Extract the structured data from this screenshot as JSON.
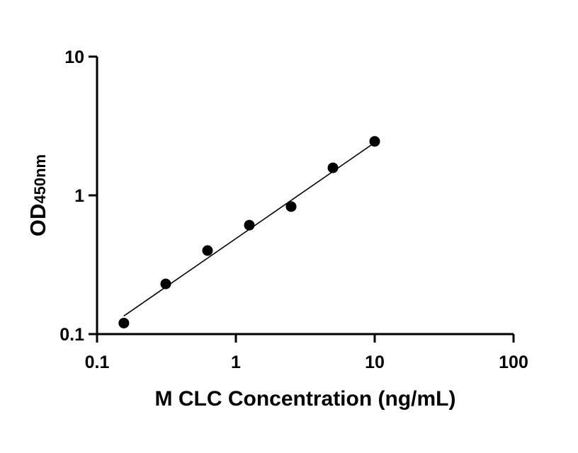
{
  "chart_data": {
    "type": "scatter",
    "title": "",
    "xlabel": "M CLC Concentration (ng/mL)",
    "ylabel": {
      "main": "OD",
      "subscript": "450nm"
    },
    "x_scale": "log",
    "y_scale": "log",
    "xlim": [
      0.1,
      100
    ],
    "ylim": [
      0.1,
      10
    ],
    "x_ticks": [
      {
        "value": 0.1,
        "label": "0.1"
      },
      {
        "value": 1,
        "label": "1"
      },
      {
        "value": 10,
        "label": "10"
      },
      {
        "value": 100,
        "label": "100"
      }
    ],
    "y_ticks": [
      {
        "value": 0.1,
        "label": "0.1"
      },
      {
        "value": 1,
        "label": "1"
      },
      {
        "value": 10,
        "label": "10"
      }
    ],
    "grid": false,
    "legend": false,
    "series": [
      {
        "x": [
          0.156,
          0.3125,
          0.625,
          1.25,
          2.5,
          5,
          10
        ],
        "y": [
          0.12,
          0.23,
          0.4,
          0.61,
          0.83,
          1.58,
          2.45
        ]
      }
    ],
    "fit_line": {
      "x": [
        0.156,
        10
      ],
      "y": [
        0.135,
        2.4
      ]
    },
    "colors": {
      "points": "#000000",
      "fit": "#000000",
      "axes": "#000000"
    }
  }
}
